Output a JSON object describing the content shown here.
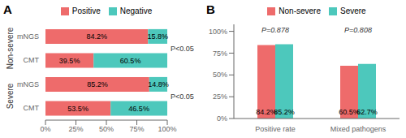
{
  "chart_data": [
    {
      "type": "bar",
      "title": "A",
      "orientation": "horizontal",
      "stacked": true,
      "categories": [
        "mNGS",
        "CMT",
        "mNGS",
        "CMT"
      ],
      "group_labels": [
        "Non-severe",
        "Severe"
      ],
      "series": [
        {
          "name": "Positive",
          "color": "#EE6B6B",
          "values": [
            84.2,
            39.5,
            85.2,
            53.5
          ],
          "value_labels": [
            "84.2%",
            "39.5%",
            "85.2%",
            "53.5%"
          ]
        },
        {
          "name": "Negative",
          "color": "#4DC8BC",
          "values": [
            15.8,
            60.5,
            14.8,
            46.5
          ],
          "value_labels": [
            "15.8%",
            "60.5%",
            "14.8%",
            "46.5%"
          ]
        }
      ],
      "xlim": [
        0,
        100
      ],
      "xticks": [
        {
          "value": 0,
          "label": "0%"
        },
        {
          "value": 25,
          "label": "25%"
        },
        {
          "value": 50,
          "label": "50%"
        },
        {
          "value": 75,
          "label": "75%"
        },
        {
          "value": 100,
          "label": "100%"
        }
      ],
      "annotations": [
        "P<0.05",
        "P<0.05"
      ],
      "data_labels": true,
      "legend": "top",
      "grid": false
    },
    {
      "type": "bar",
      "title": "B",
      "categories": [
        "Positive rate",
        "Mixed pathogens"
      ],
      "series": [
        {
          "name": "Non-severe",
          "color": "#EE6B6B",
          "values": [
            84.2,
            60.5
          ],
          "value_labels": [
            "84.2%",
            "60.5%"
          ]
        },
        {
          "name": "Severe",
          "color": "#4DC8BC",
          "values": [
            85.2,
            62.7
          ],
          "value_labels": [
            "85.2%",
            "62.7%"
          ]
        }
      ],
      "ylim": [
        0,
        108
      ],
      "yticks": [
        {
          "value": 0,
          "label": "0%"
        },
        {
          "value": 25,
          "label": "25%"
        },
        {
          "value": 50,
          "label": "50%"
        },
        {
          "value": 75,
          "label": "75%"
        },
        {
          "value": 100,
          "label": "100%"
        }
      ],
      "annotations": [
        "P=0.878",
        "P=0.808"
      ],
      "data_labels": true,
      "legend": "top",
      "grid": false
    }
  ]
}
